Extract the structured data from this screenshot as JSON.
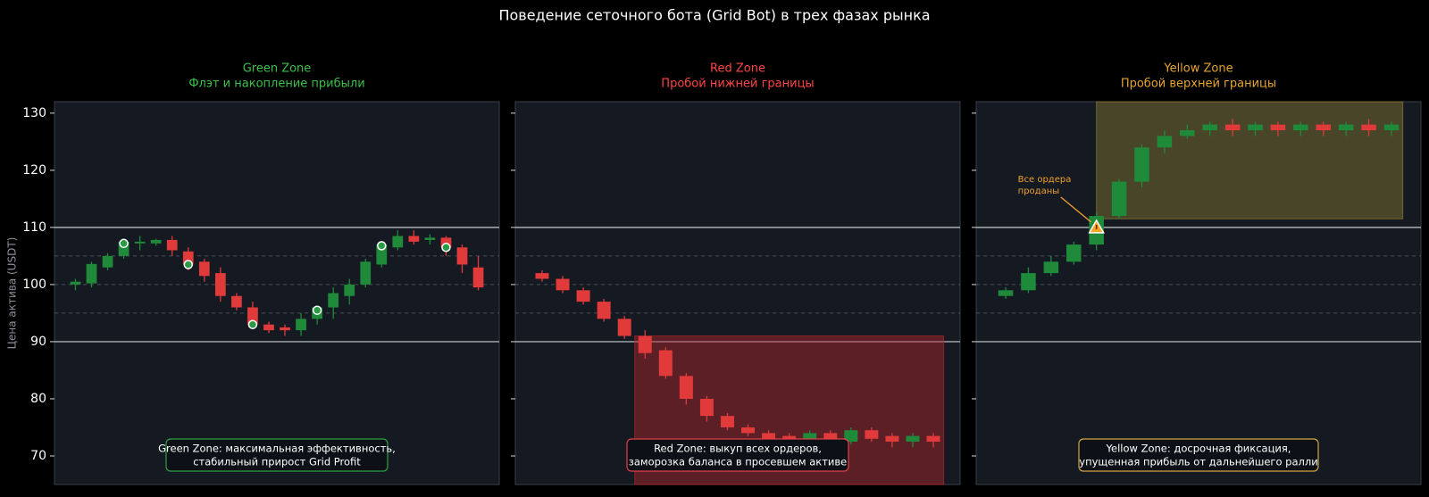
{
  "title": "Поведение сеточного бота (Grid Bot) в трех фазах рынка",
  "chart_data": [
    {
      "type": "candlestick",
      "title": "Green Zone",
      "subtitle": "Флэт и накопление прибыли",
      "title_color": "#3cc04a",
      "ylabel": "Цена актива (USDT)",
      "ytick_labels": true,
      "ylim": [
        65,
        132
      ],
      "yticks": [
        70,
        80,
        90,
        100,
        110,
        120,
        130
      ],
      "solid_levels": [
        90,
        110
      ],
      "dashed_levels": [
        95,
        100,
        105
      ],
      "up_color": "#1f8a3a",
      "down_color": "#e03a3a",
      "open": [
        100,
        100.2,
        103,
        105,
        107.2,
        107.2,
        107.8,
        105.8,
        104,
        102,
        98,
        96,
        93,
        92.5,
        92,
        94,
        96,
        98,
        100,
        103.5,
        106.5,
        108.5,
        107.8,
        108.2,
        106.5,
        103
      ],
      "high": [
        101,
        104,
        105.5,
        108,
        108.5,
        108,
        108.5,
        106.5,
        104.5,
        103,
        98.5,
        97,
        93.5,
        93,
        95,
        96,
        99.5,
        101,
        104.5,
        107.5,
        109.5,
        109.5,
        108.8,
        108.5,
        107,
        105
      ],
      "low": [
        99,
        99.5,
        102.5,
        104.5,
        106,
        106.8,
        105,
        102.5,
        100.5,
        97,
        95.5,
        92.5,
        91.5,
        91,
        91,
        93,
        94,
        96.5,
        99.5,
        103,
        106,
        107,
        107,
        105,
        102,
        99
      ],
      "close": [
        100.5,
        103.6,
        105,
        107.5,
        107.5,
        107.8,
        106,
        103.5,
        101.5,
        98,
        96,
        93,
        92,
        92,
        94,
        96,
        98.5,
        100,
        104,
        107,
        108.5,
        107.5,
        108.2,
        106.5,
        103.5,
        99.5
      ],
      "markers": [
        null,
        null,
        null,
        107.2,
        null,
        null,
        null,
        103.5,
        null,
        null,
        null,
        93,
        null,
        null,
        null,
        95.5,
        null,
        null,
        null,
        106.8,
        null,
        null,
        null,
        106.5,
        null,
        null
      ],
      "marker_shape": "circle",
      "marker_color": "#2a9a44",
      "note": [
        "Green Zone: максимальная эффективность,",
        "стабильный прирост Grid Profit"
      ],
      "note_color": "#2ea043"
    },
    {
      "type": "candlestick",
      "title": "Red Zone",
      "subtitle": "Пробой нижней границы",
      "title_color": "#ff4444",
      "ytick_labels": false,
      "ylim": [
        65,
        132
      ],
      "yticks": [
        70,
        80,
        90,
        100,
        110,
        120,
        130
      ],
      "solid_levels": [
        90,
        110
      ],
      "dashed_levels": [
        95,
        100,
        105
      ],
      "up_color": "#1f8a3a",
      "down_color": "#e03a3a",
      "open": [
        102,
        101,
        99,
        97,
        94,
        91,
        88.5,
        84,
        80,
        77,
        75,
        74,
        73.5,
        72.5,
        74,
        72.5,
        74.5,
        73.5,
        72.5,
        73.5
      ],
      "high": [
        102.5,
        101.5,
        99.5,
        97.5,
        94.5,
        92,
        89,
        84.5,
        80.5,
        77.5,
        75.5,
        74.5,
        74,
        74.5,
        74.5,
        75,
        75,
        74,
        74,
        74
      ],
      "low": [
        100.5,
        98.5,
        96.5,
        93.5,
        90.5,
        87,
        83.5,
        79,
        76,
        74.5,
        73.5,
        72.5,
        72,
        72,
        72,
        72,
        72.5,
        71.5,
        71.5,
        71.5
      ],
      "close": [
        101,
        99,
        97,
        94,
        91,
        88,
        84,
        80,
        77,
        75,
        74,
        73,
        72.5,
        74,
        72.5,
        74.5,
        73,
        72.5,
        73.5,
        72.5
      ],
      "zone": {
        "x": [
          4.5,
          19.5
        ],
        "y": [
          65,
          91
        ],
        "color": "#b3262b"
      },
      "note": [
        "Red Zone: выкуп всех ордеров,",
        "заморозка баланса в просевшем активе"
      ],
      "note_color": "#e0404a"
    },
    {
      "type": "candlestick",
      "title": "Yellow Zone",
      "subtitle": "Пробой верхней границы",
      "title_color": "#e5a530",
      "ytick_labels": false,
      "ylim": [
        65,
        132
      ],
      "yticks": [
        70,
        80,
        90,
        100,
        110,
        120,
        130
      ],
      "solid_levels": [
        90,
        110
      ],
      "dashed_levels": [
        95,
        100,
        105
      ],
      "up_color": "#1f8a3a",
      "down_color": "#e03a3a",
      "open": [
        98,
        99,
        102,
        104,
        107,
        112,
        118,
        124,
        126,
        127,
        128,
        127,
        128,
        127,
        128,
        127,
        128,
        127
      ],
      "high": [
        99.5,
        103,
        105,
        107.5,
        112.5,
        118.5,
        124.5,
        127,
        128,
        128.5,
        129,
        128.5,
        128.5,
        128.5,
        128.5,
        128.5,
        129,
        128.5
      ],
      "low": [
        97.5,
        98.5,
        101.5,
        103.5,
        106,
        111.5,
        117,
        123,
        125.5,
        126,
        126,
        126,
        126,
        126,
        126,
        126,
        126,
        126
      ],
      "close": [
        99,
        102,
        104,
        107,
        112,
        118,
        124,
        126,
        127,
        128,
        127,
        128,
        127,
        128,
        127,
        128,
        127,
        128
      ],
      "zone": {
        "x": [
          4,
          17.5
        ],
        "y": [
          111.5,
          132
        ],
        "color": "#8a7a30"
      },
      "markers": [
        null,
        null,
        null,
        null,
        110,
        null,
        null,
        null,
        null,
        null,
        null,
        null,
        null,
        null,
        null,
        null,
        null,
        null
      ],
      "marker_shape": "triangle",
      "marker_color": "#f5a623",
      "annotation": [
        "Все ордера",
        "проданы"
      ],
      "annotation_color": "#f0a030",
      "note": [
        "Yellow Zone: досрочная фиксация,",
        "упущенная прибыль от дальнейшего ралли"
      ],
      "note_color": "#d4a640"
    }
  ]
}
